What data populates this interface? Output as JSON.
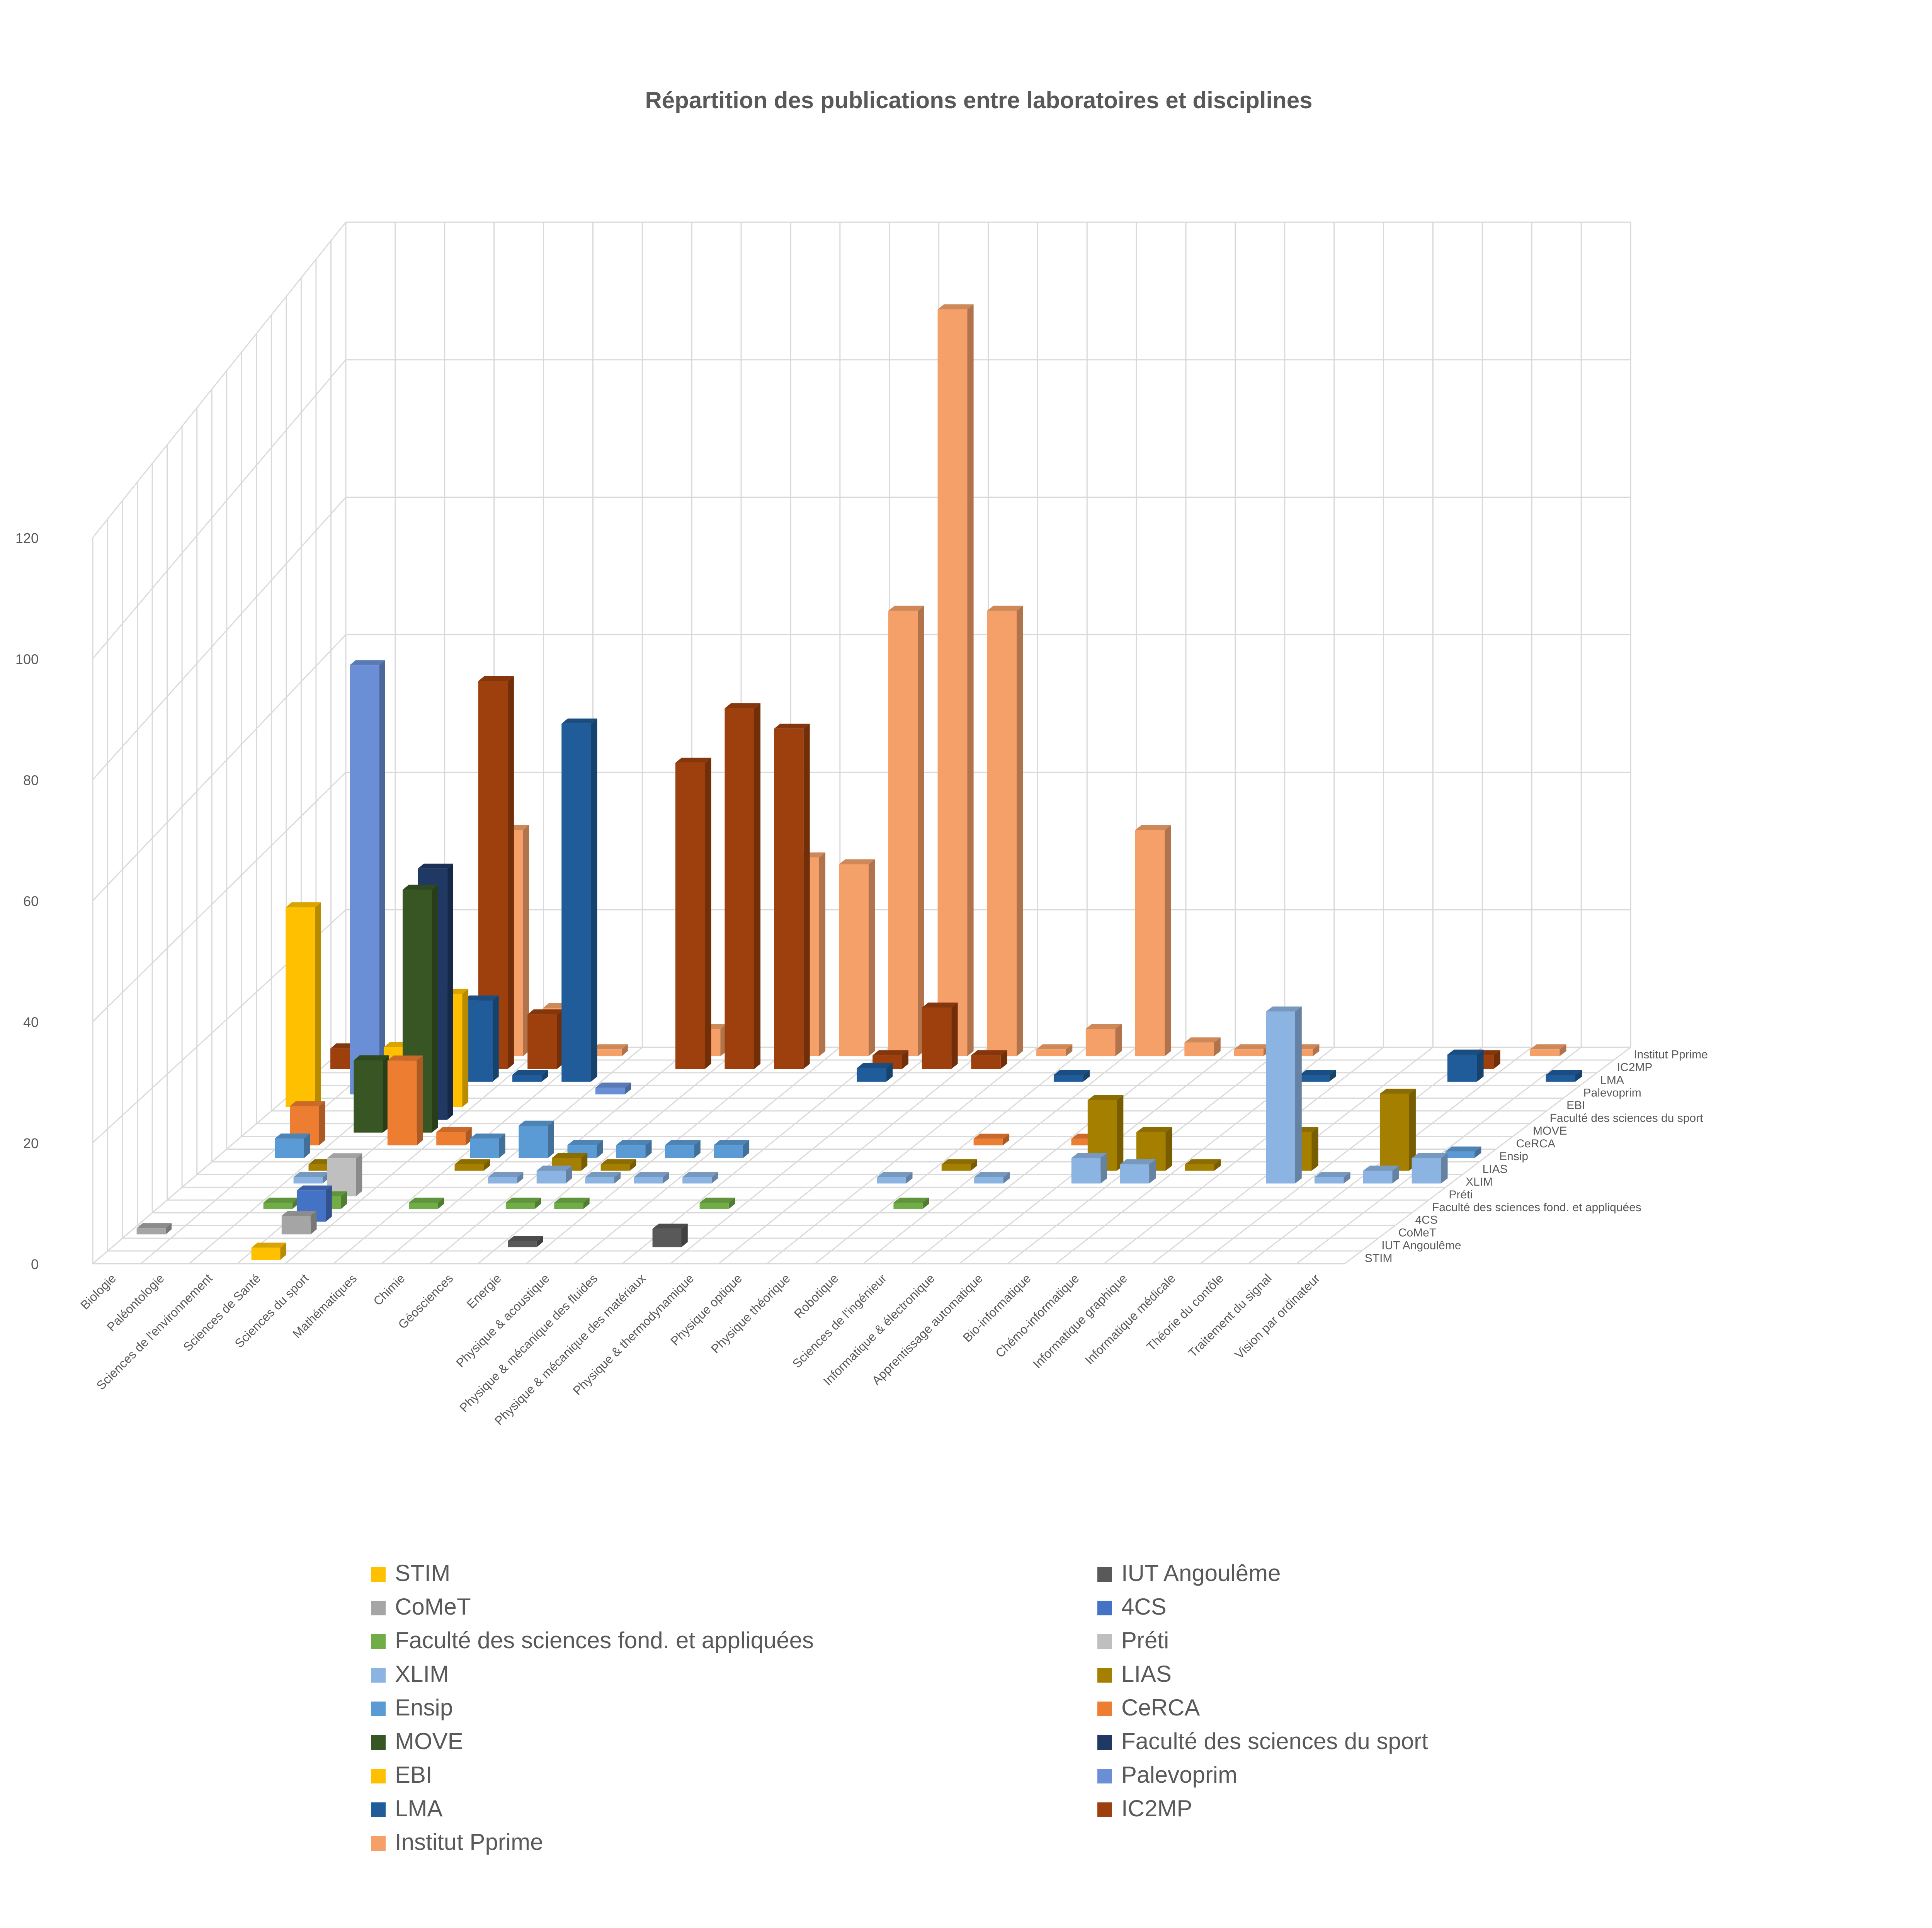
{
  "chart_data": {
    "type": "bar",
    "subtype": "3d-column",
    "title": "Répartition des publications entre laboratoires et disciplines",
    "xlabel": "",
    "ylabel": "",
    "grid": true,
    "legend_position": "bottom",
    "ylim": [
      0,
      120
    ],
    "yticks": [
      "0",
      "20",
      "40",
      "60",
      "80",
      "100",
      "120"
    ],
    "categories": [
      "Biologie",
      "Paléontologie",
      "Sciences de l'environnement",
      "Sciences de Santé",
      "Sciences du sport",
      "Mathématiques",
      "Chimie",
      "Géosciences",
      "Energie",
      "Physique & acoustique",
      "Physique & mécanique des fluides",
      "Physique &  mécanique des matériaux",
      "Physique & thermodynamique",
      "Physique optique",
      "Physique théorique",
      "Robotique",
      "Sciences de l'ingénieur",
      "Informatique & électronique",
      "Apprentissage automatique",
      "Bio-informatique",
      "Chémo-informatique",
      "Informatique graphique",
      "Informatique médicale",
      "Théorie du contôle",
      "Traitement du signal",
      "Vision par ordinateur"
    ],
    "series": [
      {
        "name": "STIM",
        "color": "#FFC000",
        "values": [
          0,
          0,
          0,
          2,
          0,
          0,
          0,
          0,
          0,
          0,
          0,
          0,
          0,
          0,
          0,
          0,
          0,
          0,
          0,
          0,
          0,
          0,
          0,
          0,
          0,
          0
        ]
      },
      {
        "name": "IUT Angoulême",
        "color": "#595959",
        "values": [
          0,
          0,
          0,
          0,
          0,
          0,
          0,
          0,
          1,
          0,
          0,
          3,
          0,
          0,
          0,
          0,
          0,
          0,
          0,
          0,
          0,
          0,
          0,
          0,
          0,
          0
        ]
      },
      {
        "name": "CoMeT",
        "color": "#A5A5A5",
        "values": [
          1,
          0,
          0,
          3,
          0,
          0,
          0,
          0,
          0,
          0,
          0,
          0,
          0,
          0,
          0,
          0,
          0,
          0,
          0,
          0,
          0,
          0,
          0,
          0,
          0,
          0
        ]
      },
      {
        "name": "4CS",
        "color": "#4472C4",
        "values": [
          0,
          0,
          0,
          5,
          0,
          0,
          0,
          0,
          0,
          0,
          0,
          0,
          0,
          0,
          0,
          0,
          0,
          0,
          0,
          0,
          0,
          0,
          0,
          0,
          0,
          0
        ]
      },
      {
        "name": "Faculté des sciences fond. et appliquées",
        "color": "#70AD47",
        "values": [
          0,
          0,
          1,
          2,
          0,
          1,
          0,
          1,
          1,
          0,
          0,
          1,
          0,
          0,
          0,
          1,
          0,
          0,
          0,
          0,
          0,
          0,
          0,
          0,
          0,
          0
        ]
      },
      {
        "name": "Préti",
        "color": "#BFBFBF",
        "values": [
          0,
          0,
          0,
          6,
          0,
          0,
          0,
          0,
          0,
          0,
          0,
          0,
          0,
          0,
          0,
          0,
          0,
          0,
          0,
          0,
          0,
          0,
          0,
          0,
          0,
          0
        ]
      },
      {
        "name": "XLIM",
        "color": "#8CB4E2",
        "values": [
          0,
          0,
          1,
          0,
          0,
          0,
          1,
          2,
          1,
          1,
          1,
          0,
          0,
          0,
          1,
          0,
          1,
          0,
          4,
          3,
          0,
          0,
          27,
          1,
          2,
          4
        ]
      },
      {
        "name": "LIAS",
        "color": "#A58000",
        "values": [
          0,
          0,
          1,
          0,
          0,
          1,
          0,
          2,
          1,
          0,
          0,
          0,
          0,
          0,
          0,
          1,
          0,
          0,
          11,
          6,
          1,
          0,
          6,
          0,
          12,
          0
        ]
      },
      {
        "name": "Ensip",
        "color": "#5B9BD5",
        "values": [
          0,
          3,
          0,
          0,
          0,
          3,
          5,
          2,
          2,
          2,
          2,
          0,
          0,
          0,
          0,
          0,
          0,
          0,
          0,
          0,
          0,
          0,
          0,
          0,
          0,
          1
        ]
      },
      {
        "name": "CeRCA",
        "color": "#ED7D31",
        "values": [
          0,
          6,
          0,
          13,
          2,
          0,
          0,
          0,
          0,
          0,
          0,
          0,
          0,
          0,
          0,
          1,
          0,
          1,
          0,
          0,
          0,
          0,
          0,
          0,
          0,
          0
        ]
      },
      {
        "name": "MOVE",
        "color": "#375623",
        "values": [
          0,
          0,
          11,
          37,
          0,
          0,
          0,
          0,
          0,
          0,
          0,
          0,
          0,
          0,
          0,
          0,
          0,
          0,
          0,
          0,
          0,
          0,
          0,
          0,
          0,
          0
        ]
      },
      {
        "name": "Faculté des sciences du sport",
        "color": "#1F3864",
        "values": [
          0,
          0,
          0,
          38,
          0,
          0,
          0,
          0,
          0,
          0,
          0,
          0,
          0,
          0,
          0,
          0,
          0,
          0,
          0,
          0,
          0,
          0,
          0,
          0,
          0,
          0
        ]
      },
      {
        "name": "EBI",
        "color": "#FFC000",
        "values": [
          30,
          0,
          9,
          17,
          0,
          0,
          0,
          0,
          0,
          0,
          0,
          0,
          0,
          0,
          0,
          0,
          0,
          0,
          0,
          0,
          0,
          0,
          0,
          0,
          0,
          0
        ]
      },
      {
        "name": "Palevoprim",
        "color": "#6A8FD6",
        "values": [
          0,
          64,
          0,
          0,
          0,
          0,
          1,
          0,
          0,
          0,
          0,
          0,
          0,
          0,
          0,
          0,
          0,
          0,
          0,
          0,
          0,
          0,
          0,
          0,
          0,
          0
        ]
      },
      {
        "name": "LMA",
        "color": "#1F5C99",
        "values": [
          0,
          0,
          0,
          12,
          1,
          53,
          0,
          0,
          0,
          0,
          0,
          2,
          0,
          0,
          0,
          1,
          0,
          0,
          0,
          0,
          1,
          0,
          0,
          4,
          0,
          1
        ]
      },
      {
        "name": "IC2MP",
        "color": "#9E400D",
        "values": [
          3,
          0,
          0,
          57,
          8,
          0,
          0,
          45,
          53,
          50,
          0,
          2,
          9,
          2,
          0,
          0,
          0,
          0,
          0,
          0,
          0,
          0,
          0,
          2,
          0,
          0
        ]
      },
      {
        "name": "Institut Pprime",
        "color": "#F4A068",
        "values": [
          0,
          0,
          0,
          33,
          7,
          1,
          0,
          4,
          0,
          29,
          28,
          65,
          109,
          65,
          1,
          4,
          33,
          2,
          1,
          1,
          0,
          0,
          0,
          0,
          1,
          0
        ]
      }
    ]
  },
  "legend": {
    "items": [
      {
        "label": "STIM",
        "color": "#FFC000"
      },
      {
        "label": "IUT Angoulême",
        "color": "#595959"
      },
      {
        "label": "CoMeT",
        "color": "#A5A5A5"
      },
      {
        "label": "4CS",
        "color": "#4472C4"
      },
      {
        "label": "Faculté des sciences fond. et appliquées",
        "color": "#70AD47"
      },
      {
        "label": "Préti",
        "color": "#BFBFBF"
      },
      {
        "label": "XLIM",
        "color": "#8CB4E2"
      },
      {
        "label": "LIAS",
        "color": "#A58000"
      },
      {
        "label": "Ensip",
        "color": "#5B9BD5"
      },
      {
        "label": "CeRCA",
        "color": "#ED7D31"
      },
      {
        "label": "MOVE",
        "color": "#375623"
      },
      {
        "label": "Faculté des sciences du sport",
        "color": "#1F3864"
      },
      {
        "label": "EBI",
        "color": "#FFC000"
      },
      {
        "label": "Palevoprim",
        "color": "#6A8FD6"
      },
      {
        "label": "LMA",
        "color": "#1F5C99"
      },
      {
        "label": "IC2MP",
        "color": "#9E400D"
      },
      {
        "label": "Institut Pprime",
        "color": "#F4A068"
      }
    ]
  }
}
